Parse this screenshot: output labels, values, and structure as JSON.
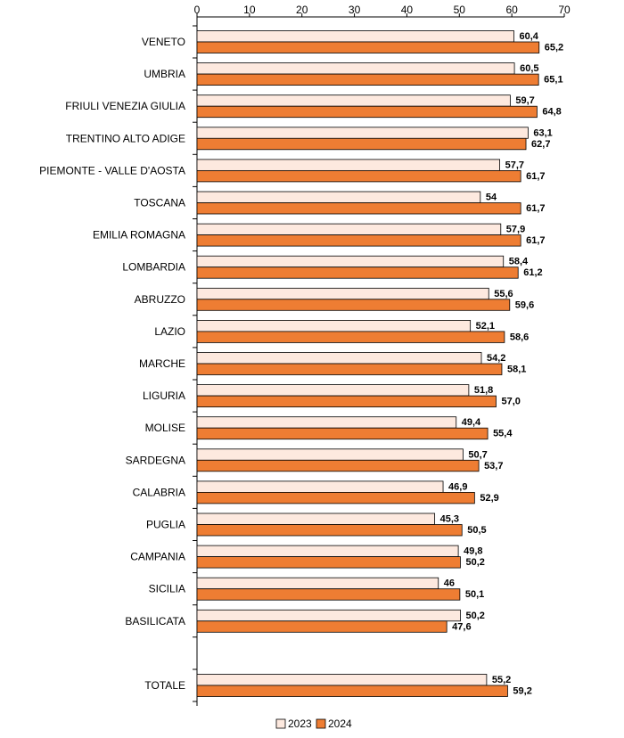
{
  "chart_data": {
    "type": "bar",
    "orientation": "horizontal",
    "categories": [
      "VENETO",
      "UMBRIA",
      "FRIULI VENEZIA GIULIA",
      "TRENTINO ALTO ADIGE",
      "PIEMONTE - VALLE D'AOSTA",
      "TOSCANA",
      "EMILIA ROMAGNA",
      "LOMBARDIA",
      "ABRUZZO",
      "LAZIO",
      "MARCHE",
      "LIGURIA",
      "MOLISE",
      "SARDEGNA",
      "CALABRIA",
      "PUGLIA",
      "CAMPANIA",
      "SICILIA",
      "BASILICATA",
      "TOTALE"
    ],
    "series": [
      {
        "name": "2023",
        "color": "#fde9df",
        "values": [
          60.4,
          60.5,
          59.7,
          63.1,
          57.7,
          54,
          57.9,
          58.4,
          55.6,
          52.1,
          54.2,
          51.8,
          49.4,
          50.7,
          46.9,
          45.3,
          49.8,
          46,
          50.2,
          55.2
        ],
        "labels": [
          "60,4",
          "60,5",
          "59,7",
          "63,1",
          "57,7",
          "54",
          "57,9",
          "58,4",
          "55,6",
          "52,1",
          "54,2",
          "51,8",
          "49,4",
          "50,7",
          "46,9",
          "45,3",
          "49,8",
          "46",
          "50,2",
          "55,2"
        ]
      },
      {
        "name": "2024",
        "color": "#ee7d33",
        "values": [
          65.2,
          65.1,
          64.8,
          62.7,
          61.7,
          61.7,
          61.7,
          61.2,
          59.6,
          58.6,
          58.1,
          57.0,
          55.4,
          53.7,
          52.9,
          50.5,
          50.2,
          50.1,
          47.6,
          59.2
        ],
        "labels": [
          "65,2",
          "65,1",
          "64,8",
          "62,7",
          "61,7",
          "61,7",
          "61,7",
          "61,2",
          "59,6",
          "58,6",
          "58,1",
          "57,0",
          "55,4",
          "53,7",
          "52,9",
          "50,5",
          "50,2",
          "50,1",
          "47,6",
          "59,2"
        ]
      }
    ],
    "xlim": [
      0,
      70
    ],
    "xticks": [
      0,
      10,
      20,
      30,
      40,
      50,
      60,
      70
    ],
    "xaxis_position": "top",
    "grid": false,
    "legend_position": "bottom-center"
  }
}
